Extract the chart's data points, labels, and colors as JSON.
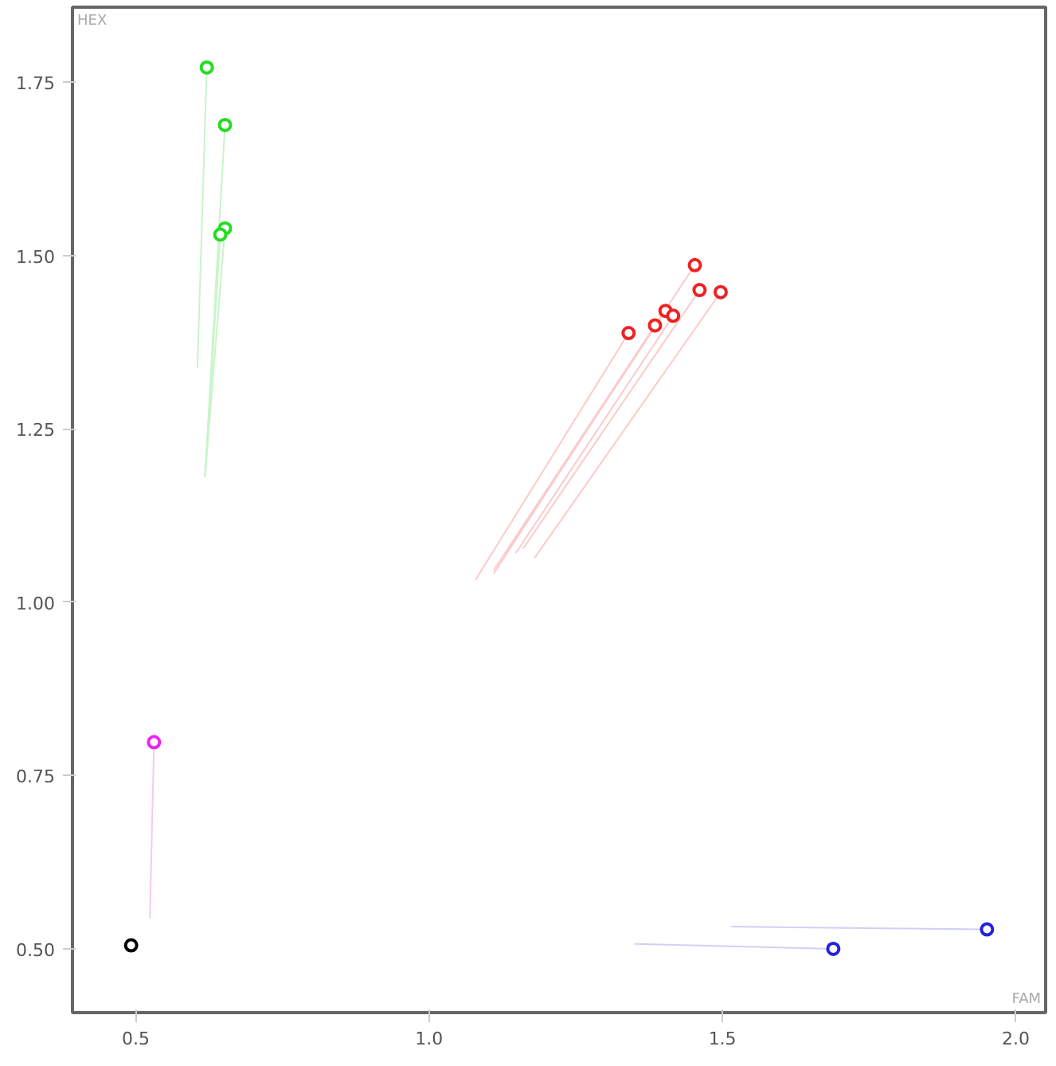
{
  "chart_data": {
    "type": "scatter",
    "xlabel": "FAM",
    "ylabel": "HEX",
    "xlim": [
      0.392,
      2.051
    ],
    "ylim": [
      0.408,
      1.858
    ],
    "xticks": [
      {
        "value": 0.5,
        "label": "0.5"
      },
      {
        "value": 1.0,
        "label": "1.0"
      },
      {
        "value": 1.5,
        "label": "1.5"
      },
      {
        "value": 2.0,
        "label": "2.0"
      }
    ],
    "yticks": [
      {
        "value": 0.5,
        "label": "0.50"
      },
      {
        "value": 0.75,
        "label": "0.75"
      },
      {
        "value": 1.0,
        "label": "1.00"
      },
      {
        "value": 1.25,
        "label": "1.25"
      },
      {
        "value": 1.5,
        "label": "1.50"
      },
      {
        "value": 1.75,
        "label": "1.75"
      }
    ],
    "grid": false,
    "series": [
      {
        "type": "line",
        "color": "#c8f5c8",
        "x": [
          0.605,
          0.621
        ],
        "values": [
          1.337,
          1.771
        ]
      },
      {
        "type": "line",
        "color": "#c8f5c8",
        "x": [
          0.618,
          0.652
        ],
        "values": [
          1.181,
          1.688
        ]
      },
      {
        "type": "line",
        "color": "#c8f5c8",
        "x": [
          0.618,
          0.652
        ],
        "values": [
          1.181,
          1.539
        ]
      },
      {
        "type": "line",
        "color": "#c8f5c8",
        "x": [
          0.618,
          0.644
        ],
        "values": [
          1.181,
          1.53
        ]
      },
      {
        "type": "line",
        "color": "#fbcaca",
        "x": [
          1.079,
          1.34
        ],
        "values": [
          1.032,
          1.388
        ]
      },
      {
        "type": "line",
        "color": "#fbcaca",
        "x": [
          1.11,
          1.385
        ],
        "values": [
          1.041,
          1.399
        ]
      },
      {
        "type": "line",
        "color": "#fbcaca",
        "x": [
          1.13,
          1.403
        ],
        "values": [
          1.069,
          1.42
        ]
      },
      {
        "type": "line",
        "color": "#fbcaca",
        "x": [
          1.148,
          1.416
        ],
        "values": [
          1.071,
          1.413
        ]
      },
      {
        "type": "line",
        "color": "#fbcaca",
        "x": [
          1.11,
          1.453
        ],
        "values": [
          1.046,
          1.486
        ]
      },
      {
        "type": "line",
        "color": "#fbcaca",
        "x": [
          1.16,
          1.461
        ],
        "values": [
          1.077,
          1.45
        ]
      },
      {
        "type": "line",
        "color": "#fbcaca",
        "x": [
          1.18,
          1.497
        ],
        "values": [
          1.064,
          1.447
        ]
      },
      {
        "type": "line",
        "color": "#f7c8f7",
        "x": [
          0.524,
          0.531
        ],
        "values": [
          0.544,
          0.798
        ]
      },
      {
        "type": "line",
        "color": "#d0d0f7",
        "x": [
          1.515,
          1.951
        ],
        "values": [
          0.532,
          0.528
        ]
      },
      {
        "type": "line",
        "color": "#d0d0f7",
        "x": [
          1.35,
          1.689
        ],
        "values": [
          0.507,
          0.5
        ]
      },
      {
        "marker": "circle",
        "color": "#22dd22",
        "x": [
          0.621,
          0.652,
          0.652,
          0.644
        ],
        "values": [
          1.771,
          1.688,
          1.539,
          1.53
        ]
      },
      {
        "marker": "circle",
        "color": "#ee2222",
        "x": [
          1.34,
          1.385,
          1.403,
          1.416,
          1.453,
          1.461,
          1.497
        ],
        "values": [
          1.388,
          1.399,
          1.42,
          1.413,
          1.486,
          1.45,
          1.447
        ]
      },
      {
        "marker": "circle",
        "color": "#ee22ee",
        "x": [
          0.531
        ],
        "values": [
          0.798
        ]
      },
      {
        "marker": "circle",
        "color": "#000000",
        "x": [
          0.492
        ],
        "values": [
          0.505
        ]
      },
      {
        "marker": "circle",
        "color": "#2222dd",
        "x": [
          1.951,
          1.689
        ],
        "values": [
          0.528,
          0.5
        ]
      }
    ]
  }
}
